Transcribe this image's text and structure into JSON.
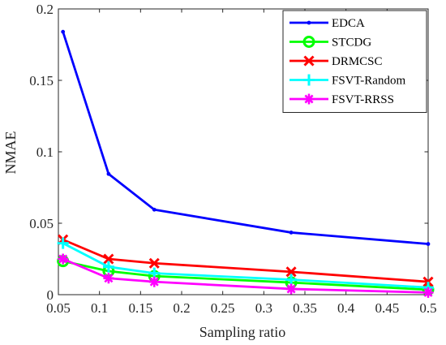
{
  "chart_data": {
    "type": "line",
    "xlabel": "Sampling ratio",
    "ylabel": "NMAE",
    "xlim": [
      0.05,
      0.5
    ],
    "ylim": [
      0,
      0.2
    ],
    "xticks": [
      "0.05",
      "0.1",
      "0.15",
      "0.2",
      "0.25",
      "0.3",
      "0.35",
      "0.4",
      "0.45",
      "0.5"
    ],
    "yticks": [
      "0",
      "0.05",
      "0.1",
      "0.15",
      "0.2"
    ],
    "grid": false,
    "legend_position": "top-right",
    "x": [
      0.0556,
      0.1111,
      0.1667,
      0.3333,
      0.5
    ],
    "series": [
      {
        "name": "EDCA",
        "color": "#0000ff",
        "marker": "dot",
        "values": [
          0.184,
          0.0845,
          0.0595,
          0.0435,
          0.0355
        ]
      },
      {
        "name": "STCDG",
        "color": "#00ff00",
        "marker": "circle",
        "values": [
          0.0235,
          0.0165,
          0.013,
          0.0085,
          0.0035
        ]
      },
      {
        "name": "DRMCSC",
        "color": "#ff0000",
        "marker": "x",
        "values": [
          0.0385,
          0.025,
          0.022,
          0.016,
          0.009
        ]
      },
      {
        "name": "FSVT-Random",
        "color": "#00ffff",
        "marker": "plus",
        "values": [
          0.036,
          0.0195,
          0.015,
          0.0105,
          0.005
        ]
      },
      {
        "name": "FSVT-RRSS",
        "color": "#ff00ff",
        "marker": "star",
        "values": [
          0.025,
          0.0115,
          0.009,
          0.004,
          0.0015
        ]
      }
    ]
  }
}
